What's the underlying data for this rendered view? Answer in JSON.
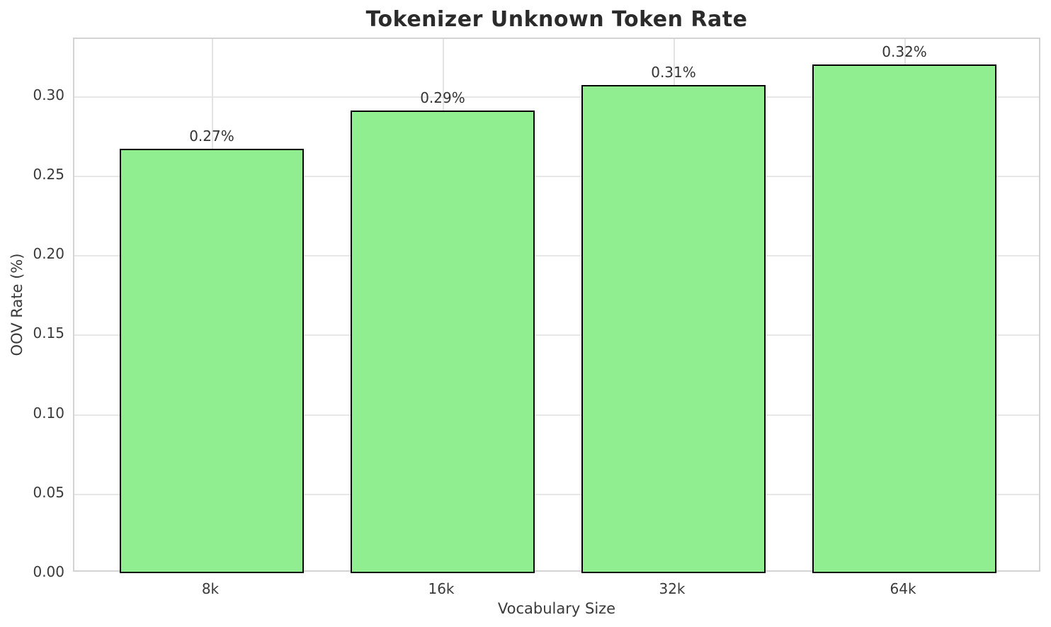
{
  "chart_data": {
    "type": "bar",
    "title": "Tokenizer Unknown Token Rate",
    "xlabel": "Vocabulary Size",
    "ylabel": "OOV Rate (%)",
    "categories": [
      "8k",
      "16k",
      "32k",
      "64k"
    ],
    "values": [
      0.267,
      0.291,
      0.307,
      0.32
    ],
    "bar_labels": [
      "0.27%",
      "0.29%",
      "0.31%",
      "0.32%"
    ],
    "yticks": [
      0.0,
      0.05,
      0.1,
      0.15,
      0.2,
      0.25,
      0.3
    ],
    "ytick_labels": [
      "0.00",
      "0.05",
      "0.10",
      "0.15",
      "0.20",
      "0.25",
      "0.30"
    ],
    "ylim": [
      0,
      0.336
    ],
    "grid": true,
    "legend": false,
    "colors": {
      "bar_fill": "#90EE90",
      "bar_edge": "#000000",
      "grid": "#e7e7e7",
      "spine": "#d3d3d3",
      "text": "#333333"
    }
  }
}
